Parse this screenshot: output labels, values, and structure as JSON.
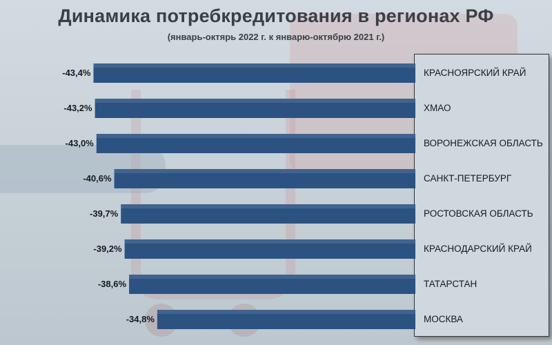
{
  "chart_data": {
    "type": "bar",
    "orientation": "horizontal",
    "title": "Динамика потребкредитования в регионах РФ",
    "subtitle": "(январь-октярь 2022 г. к январю-октябрю 2021 г.)",
    "categories": [
      "КРАСНОЯРСКИЙ КРАЙ",
      "ХМАО",
      "ВОРОНЕЖСКАЯ ОБЛАСТЬ",
      "САНКТ-ПЕТЕРБУРГ",
      "РОСТОВСКАЯ ОБЛАСТЬ",
      "КРАСНОДАРСКИЙ КРАЙ",
      "ТАТАРСТАН",
      "МОСКВА"
    ],
    "values": [
      -43.4,
      -43.2,
      -43.0,
      -40.6,
      -39.7,
      -39.2,
      -38.6,
      -34.8
    ],
    "value_labels": [
      "-43,4%",
      "-43,2%",
      "-43,0%",
      "-40,6%",
      "-39,7%",
      "-39,2%",
      "-38,6%",
      "-34,8%"
    ],
    "unit": "%",
    "xlim": [
      -50,
      0
    ],
    "grid": false,
    "legend": "none",
    "bar_color": "#2c5282"
  }
}
